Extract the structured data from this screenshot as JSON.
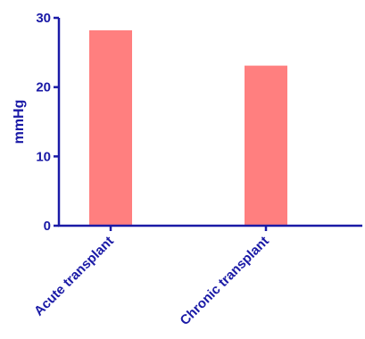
{
  "chart_data": {
    "type": "bar",
    "title": "",
    "xlabel": "",
    "ylabel": "mmHg",
    "ylim": [
      0,
      30
    ],
    "yticks": [
      0,
      10,
      20,
      30
    ],
    "categories": [
      "Acute transplant",
      "Chronic transplant"
    ],
    "values": [
      28.2,
      23.1
    ],
    "grid": false,
    "legend": "none"
  },
  "colors": {
    "axis": "#1a1aa6",
    "bar": "#ff7f7f",
    "background": "#ffffff"
  }
}
